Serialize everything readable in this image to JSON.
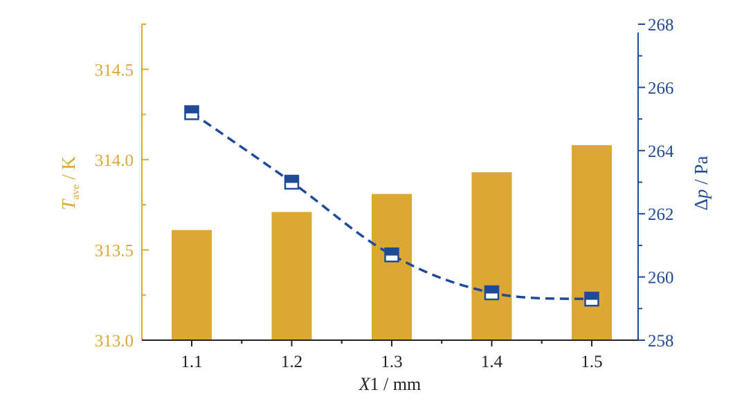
{
  "chart_data": {
    "type": "bar",
    "categories": [
      "1.1",
      "1.2",
      "1.3",
      "1.4",
      "1.5"
    ],
    "bar_series": {
      "values": [
        313.61,
        313.71,
        313.81,
        313.93,
        314.08
      ],
      "color": "#DBA832"
    },
    "line_series": {
      "values": [
        265.2,
        263.0,
        260.7,
        259.5,
        259.3
      ],
      "color": "#1F4A9A"
    },
    "xlabel": {
      "italic": "X",
      "rest": "1 / mm"
    },
    "ylabel_left": {
      "italic": "T",
      "subscript": "ave",
      "rest": " / K",
      "color": "#DBA832"
    },
    "ylabel_right": {
      "prefix": "Δ",
      "italic": "p",
      "rest": " / Pa",
      "color": "#1F4A9A"
    },
    "ylim_left": [
      313.0,
      314.75
    ],
    "yticks_left": [
      "313.0",
      "313.5",
      "314.0",
      "314.5"
    ],
    "ylim_right": [
      258,
      268
    ],
    "yticks_right": [
      "258",
      "260",
      "262",
      "264",
      "266",
      "268"
    ],
    "grid": false,
    "legend": "none"
  }
}
